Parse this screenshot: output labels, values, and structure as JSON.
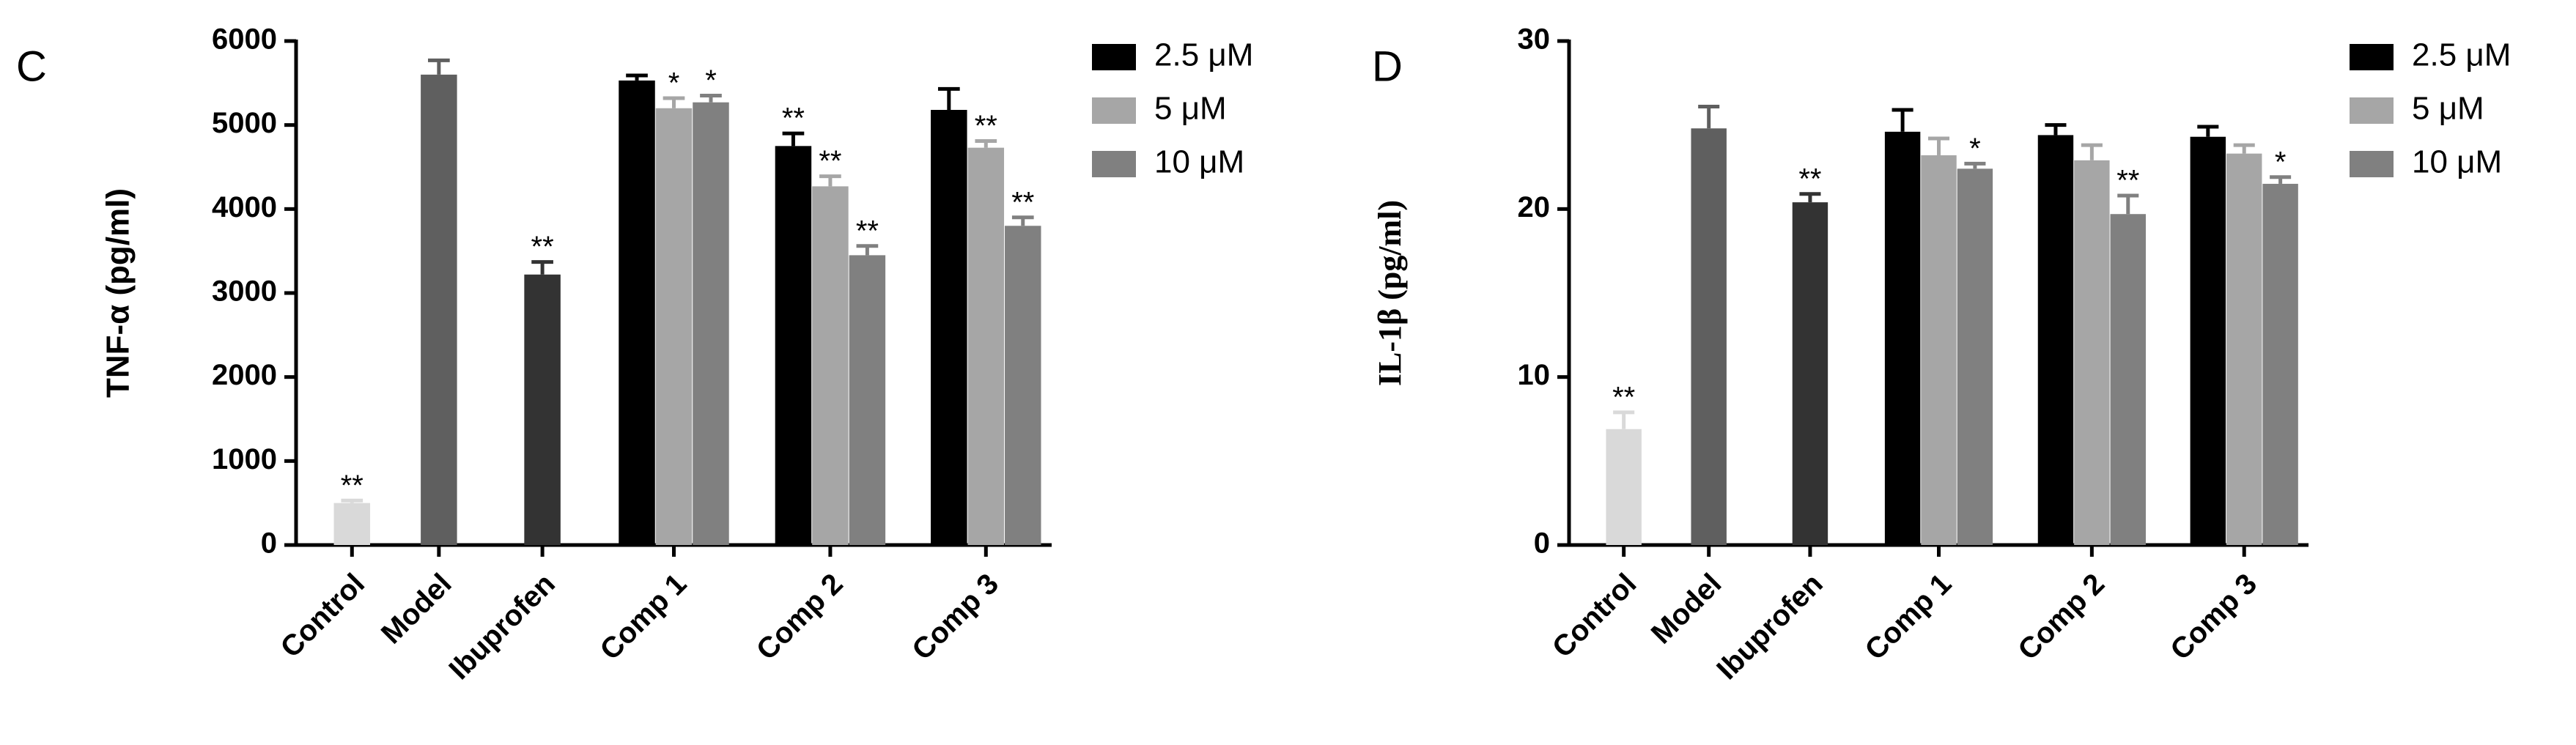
{
  "chart_data": [
    {
      "type": "bar",
      "panel": "C",
      "ylabel": "TNF-α (pg/ml)",
      "categories": [
        "Control",
        "Model",
        "Ibuprofen",
        "Comp 1",
        "Comp 2",
        "Comp 3"
      ],
      "single": {
        "values": [
          500,
          5600,
          3220,
          null,
          null,
          null
        ],
        "errors": [
          30,
          170,
          150,
          null,
          null,
          null
        ],
        "colors": [
          "#d9d9d9",
          "#5f5f5f",
          "#333333",
          null,
          null,
          null
        ],
        "significance": [
          "**",
          null,
          "**",
          null,
          null,
          null
        ]
      },
      "series": [
        {
          "name": "2.5 μM",
          "color": "#000000",
          "values": [
            null,
            null,
            null,
            5530,
            4750,
            5180
          ],
          "errors": [
            null,
            null,
            null,
            60,
            150,
            250
          ],
          "significance": [
            null,
            null,
            null,
            null,
            "**",
            null
          ]
        },
        {
          "name": "5 μM",
          "color": "#a6a6a6",
          "values": [
            null,
            null,
            null,
            5200,
            4270,
            4730
          ],
          "errors": [
            null,
            null,
            null,
            120,
            120,
            80
          ],
          "significance": [
            null,
            null,
            null,
            "*",
            "**",
            "**"
          ]
        },
        {
          "name": "10 μM",
          "color": "#808080",
          "values": [
            null,
            null,
            null,
            5270,
            3450,
            3800
          ],
          "errors": [
            null,
            null,
            null,
            80,
            110,
            100
          ],
          "significance": [
            null,
            null,
            null,
            "*",
            "**",
            "**"
          ]
        }
      ],
      "ylim": [
        0,
        6000
      ],
      "yticks": [
        0,
        1000,
        2000,
        3000,
        4000,
        5000,
        6000
      ]
    },
    {
      "type": "bar",
      "panel": "D",
      "ylabel": "IL-1β (pg/ml)",
      "categories": [
        "Control",
        "Model",
        "Ibuprofen",
        "Comp 1",
        "Comp 2",
        "Comp 3"
      ],
      "single": {
        "values": [
          6.9,
          24.8,
          20.4,
          null,
          null,
          null
        ],
        "errors": [
          1.0,
          1.3,
          0.5,
          null,
          null,
          null
        ],
        "colors": [
          "#d9d9d9",
          "#5f5f5f",
          "#333333",
          null,
          null,
          null
        ],
        "significance": [
          "**",
          null,
          "**",
          null,
          null,
          null
        ]
      },
      "series": [
        {
          "name": "2.5 μM",
          "color": "#000000",
          "values": [
            null,
            null,
            null,
            24.6,
            24.4,
            24.3
          ],
          "errors": [
            null,
            null,
            null,
            1.3,
            0.6,
            0.6
          ],
          "significance": [
            null,
            null,
            null,
            null,
            null,
            null
          ]
        },
        {
          "name": "5 μM",
          "color": "#a6a6a6",
          "values": [
            null,
            null,
            null,
            23.2,
            22.9,
            23.3
          ],
          "errors": [
            null,
            null,
            null,
            1.0,
            0.9,
            0.5
          ],
          "significance": [
            null,
            null,
            null,
            null,
            null,
            null
          ]
        },
        {
          "name": "10 μM",
          "color": "#808080",
          "values": [
            null,
            null,
            null,
            22.4,
            19.7,
            21.5
          ],
          "errors": [
            null,
            null,
            null,
            0.3,
            1.1,
            0.4
          ],
          "significance": [
            null,
            null,
            null,
            "*",
            "**",
            "*"
          ]
        }
      ],
      "ylim": [
        0,
        30
      ],
      "yticks": [
        0,
        10,
        20,
        30
      ]
    }
  ]
}
